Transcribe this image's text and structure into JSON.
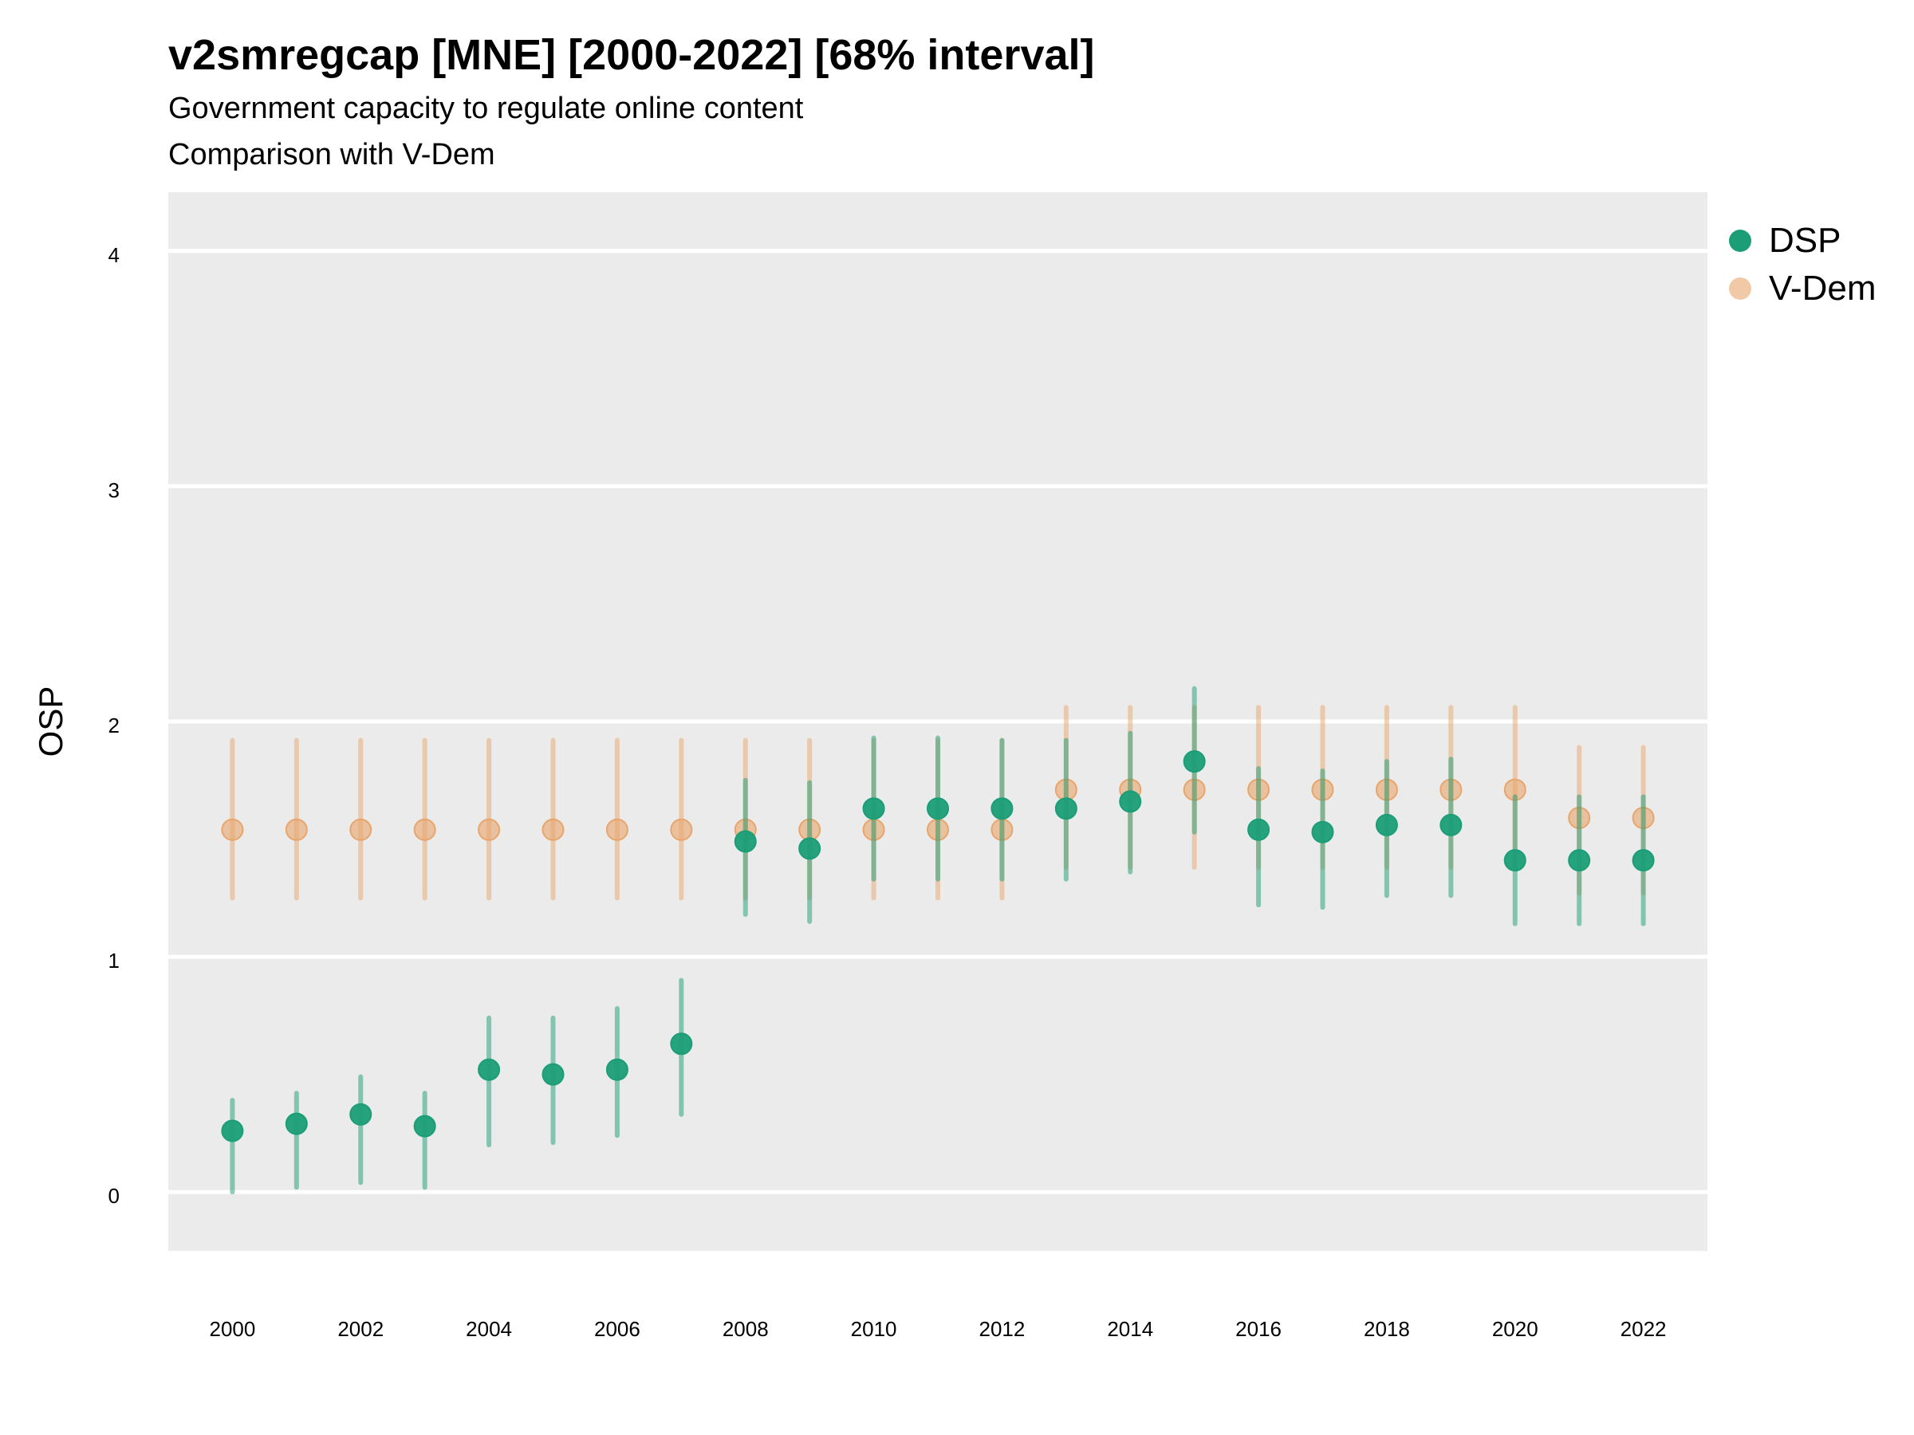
{
  "chart_data": {
    "type": "scatter",
    "title": "v2smregcap [MNE] [2000-2022] [68% interval]",
    "subtitle": "Government capacity to regulate online content",
    "subtitle2": "Comparison with V-Dem",
    "xlabel": "",
    "ylabel": "OSP",
    "x": [
      2000,
      2001,
      2002,
      2003,
      2004,
      2005,
      2006,
      2007,
      2008,
      2009,
      2010,
      2011,
      2012,
      2013,
      2014,
      2015,
      2016,
      2017,
      2018,
      2019,
      2020,
      2021,
      2022
    ],
    "x_ticks": [
      "2000",
      "2002",
      "2004",
      "2006",
      "2008",
      "2010",
      "2012",
      "2014",
      "2016",
      "2018",
      "2020",
      "2022"
    ],
    "y_ticks": [
      "0",
      "1",
      "2",
      "3",
      "4"
    ],
    "xlim": [
      1999,
      2023
    ],
    "ylim": [
      -0.25,
      4.25
    ],
    "grid": true,
    "legend_position": "right",
    "series": [
      {
        "name": "V-Dem",
        "color": "#E8A56C",
        "values": [
          1.54,
          1.54,
          1.54,
          1.54,
          1.54,
          1.54,
          1.54,
          1.54,
          1.54,
          1.54,
          1.54,
          1.54,
          1.54,
          1.71,
          1.71,
          1.71,
          1.71,
          1.71,
          1.71,
          1.71,
          1.71,
          1.59,
          1.59
        ],
        "lower": [
          1.25,
          1.25,
          1.25,
          1.25,
          1.25,
          1.25,
          1.25,
          1.25,
          1.25,
          1.25,
          1.25,
          1.25,
          1.25,
          1.38,
          1.38,
          1.38,
          1.38,
          1.38,
          1.38,
          1.38,
          1.38,
          1.27,
          1.27
        ],
        "upper": [
          1.92,
          1.92,
          1.92,
          1.92,
          1.92,
          1.92,
          1.92,
          1.92,
          1.92,
          1.92,
          1.92,
          1.92,
          1.92,
          2.06,
          2.06,
          2.06,
          2.06,
          2.06,
          2.06,
          2.06,
          2.06,
          1.89,
          1.89
        ]
      },
      {
        "name": "DSP",
        "color": "#1B9E77",
        "values": [
          0.26,
          0.29,
          0.33,
          0.28,
          0.52,
          0.5,
          0.52,
          0.63,
          1.49,
          1.46,
          1.63,
          1.63,
          1.63,
          1.63,
          1.66,
          1.83,
          1.54,
          1.53,
          1.56,
          1.56,
          1.41,
          1.41,
          1.41
        ],
        "lower": [
          0.0,
          0.02,
          0.04,
          0.02,
          0.2,
          0.21,
          0.24,
          0.33,
          1.18,
          1.15,
          1.33,
          1.33,
          1.33,
          1.33,
          1.36,
          1.53,
          1.22,
          1.21,
          1.26,
          1.26,
          1.14,
          1.14,
          1.14
        ],
        "upper": [
          0.39,
          0.42,
          0.49,
          0.42,
          0.74,
          0.74,
          0.78,
          0.9,
          1.75,
          1.74,
          1.93,
          1.93,
          1.92,
          1.92,
          1.95,
          2.14,
          1.8,
          1.79,
          1.83,
          1.84,
          1.68,
          1.68,
          1.68
        ]
      }
    ]
  }
}
